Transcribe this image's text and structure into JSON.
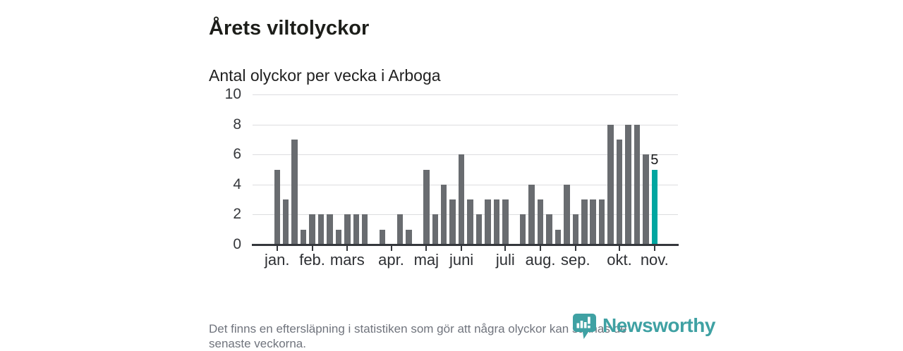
{
  "title": "Årets viltolyckor",
  "subtitle": "Antal olyckor per vecka i Arboga",
  "note": {
    "line1": "Det finns en eftersläpning i statistiken som gör att några olyckor kan saknas de",
    "line2": "senaste veckorna."
  },
  "logo": {
    "text": "Newsworthy",
    "color": "#3fa1a3",
    "icon": "newsworthy-speech-bubble-bar-chart"
  },
  "colors": {
    "bar": "#696c70",
    "highlight": "#00a6a0",
    "axis": "#34373c",
    "gridline": "#dcdddf",
    "title_text": "#1d1e1a",
    "axis_text": "#36383c",
    "note_text": "#70747d"
  },
  "chart_data": {
    "type": "bar",
    "title": "Årets viltolyckor",
    "subtitle": "Antal olyckor per vecka i Arboga",
    "xlabel": "",
    "ylabel": "",
    "x_description": "vecka 1–44",
    "ylim": [
      0,
      10
    ],
    "yticks": [
      0,
      2,
      4,
      6,
      8,
      10
    ],
    "ytick_labels": [
      "0",
      "2",
      "4",
      "6",
      "8",
      "10"
    ],
    "grid": true,
    "legend": false,
    "values": [
      5,
      3,
      7,
      1,
      2,
      2,
      2,
      1,
      2,
      2,
      2,
      0,
      1,
      0,
      2,
      1,
      0,
      5,
      2,
      4,
      3,
      6,
      3,
      2,
      3,
      3,
      3,
      0,
      2,
      4,
      3,
      2,
      1,
      4,
      2,
      3,
      3,
      3,
      8,
      7,
      8,
      8,
      6,
      5
    ],
    "month_ticks": [
      {
        "label": "jan.",
        "index": 0
      },
      {
        "label": "feb.",
        "index": 4
      },
      {
        "label": "mars",
        "index": 8
      },
      {
        "label": "apr.",
        "index": 13
      },
      {
        "label": "maj",
        "index": 17
      },
      {
        "label": "juni",
        "index": 21
      },
      {
        "label": "juli",
        "index": 26
      },
      {
        "label": "aug.",
        "index": 30
      },
      {
        "label": "sep.",
        "index": 34
      },
      {
        "label": "okt.",
        "index": 39
      },
      {
        "label": "nov.",
        "index": 43
      }
    ],
    "highlight": {
      "index": 43,
      "value": 5,
      "label": "5"
    }
  }
}
